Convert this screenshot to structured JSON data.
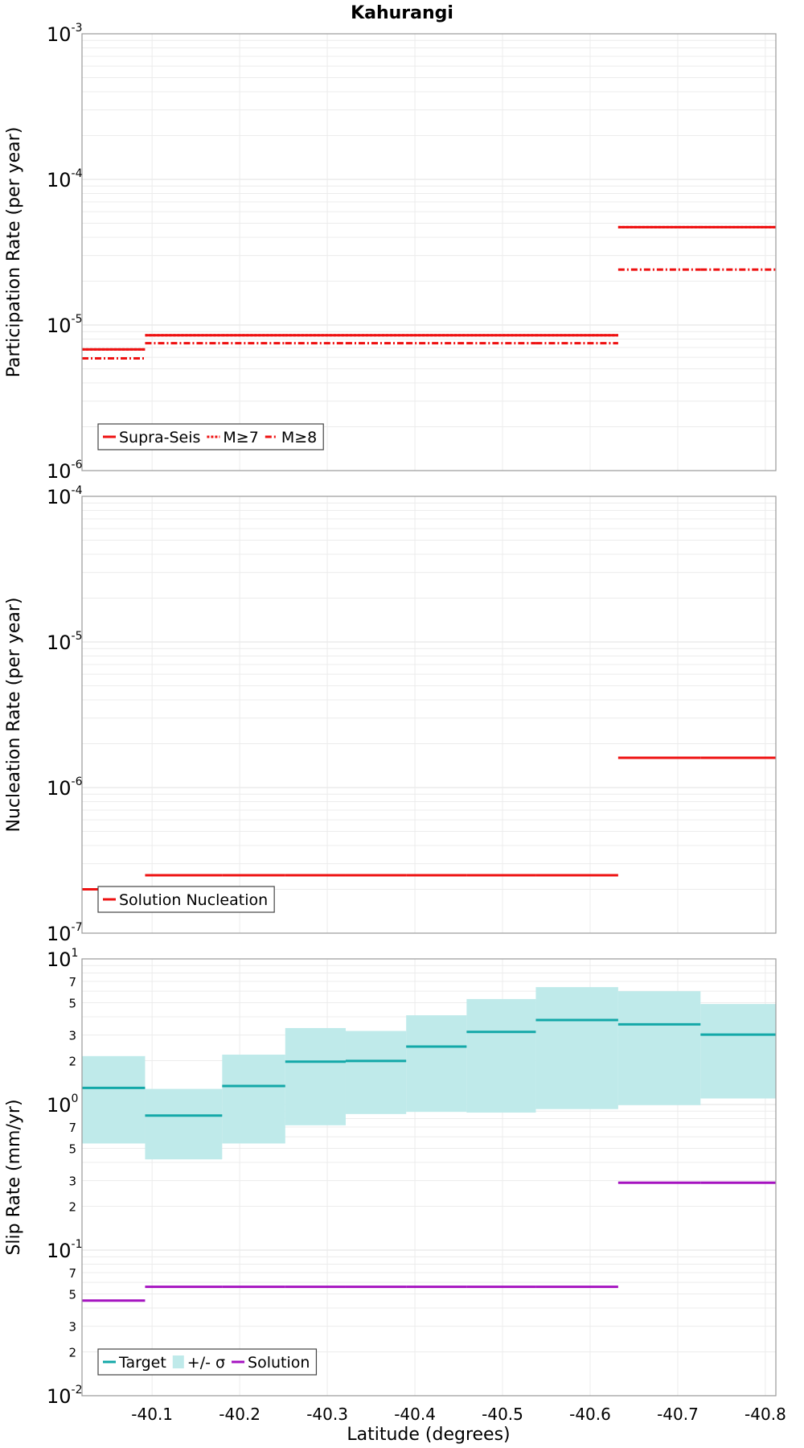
{
  "chart_data": {
    "type": "line",
    "title": "Kahurangi",
    "xlabel": "Latitude (degrees)",
    "x_ticks": [
      "-40.1",
      "-40.2",
      "-40.3",
      "-40.4",
      "-40.5",
      "-40.6",
      "-40.7",
      "-40.8"
    ],
    "x_tick_values": [
      -40.1,
      -40.2,
      -40.3,
      -40.4,
      -40.5,
      -40.6,
      -40.7,
      -40.8
    ],
    "xlim": [
      -40.02,
      -40.812
    ],
    "subsection_boundaries": [
      -40.02,
      -40.092,
      -40.18,
      -40.252,
      -40.321,
      -40.39,
      -40.459,
      -40.538,
      -40.632,
      -40.726,
      -40.812
    ],
    "panels": [
      {
        "ylabel": "Participation Rate (per year)",
        "scale": "log",
        "ylim": [
          1e-06,
          0.001
        ],
        "y_ticks": [
          {
            "base": "10",
            "exp": "-6"
          },
          {
            "base": "10",
            "exp": "-5"
          },
          {
            "base": "10",
            "exp": "-4"
          },
          {
            "base": "10",
            "exp": "-3"
          }
        ],
        "grid": true,
        "legend_position": "bottom-left",
        "series": [
          {
            "name": "Supra-Seis",
            "style": "solid",
            "color": "#ee1111",
            "values": [
              6.8e-06,
              8.5e-06,
              8.5e-06,
              8.5e-06,
              8.5e-06,
              8.5e-06,
              8.5e-06,
              8.5e-06,
              4.7e-05,
              4.7e-05
            ]
          },
          {
            "name": "M≥7",
            "style": "dotted",
            "color": "#ee1111",
            "values": [
              6.8e-06,
              8.5e-06,
              8.5e-06,
              8.5e-06,
              8.5e-06,
              8.5e-06,
              8.5e-06,
              8.5e-06,
              4.7e-05,
              4.7e-05
            ]
          },
          {
            "name": "M≥8",
            "style": "dashdot",
            "color": "#ee1111",
            "values": [
              5.9e-06,
              7.5e-06,
              7.5e-06,
              7.5e-06,
              7.5e-06,
              7.5e-06,
              7.5e-06,
              7.5e-06,
              2.4e-05,
              2.4e-05
            ]
          }
        ]
      },
      {
        "ylabel": "Nucleation Rate (per year)",
        "scale": "log",
        "ylim": [
          1e-07,
          0.0001
        ],
        "y_ticks": [
          {
            "base": "10",
            "exp": "-7"
          },
          {
            "base": "10",
            "exp": "-6"
          },
          {
            "base": "10",
            "exp": "-5"
          },
          {
            "base": "10",
            "exp": "-4"
          }
        ],
        "grid": true,
        "legend_position": "bottom-left",
        "series": [
          {
            "name": "Solution Nucleation",
            "style": "solid",
            "color": "#ee1111",
            "values": [
              2e-07,
              2.5e-07,
              2.5e-07,
              2.5e-07,
              2.5e-07,
              2.5e-07,
              2.5e-07,
              2.5e-07,
              1.6e-06,
              1.6e-06
            ]
          }
        ]
      },
      {
        "ylabel": "Slip Rate (mm/yr)",
        "scale": "log",
        "ylim": [
          0.01,
          10
        ],
        "y_ticks": [
          {
            "base": "10",
            "exp": "-2"
          },
          {
            "base": "10",
            "exp": "-1"
          },
          {
            "base": "10",
            "exp": "0"
          },
          {
            "base": "10",
            "exp": "1"
          }
        ],
        "minor_ticks": [
          {
            "value": 0.02,
            "label": "2"
          },
          {
            "value": 0.03,
            "label": "3"
          },
          {
            "value": 0.05,
            "label": "5"
          },
          {
            "value": 0.07,
            "label": "7"
          },
          {
            "value": 0.2,
            "label": "2"
          },
          {
            "value": 0.3,
            "label": "3"
          },
          {
            "value": 0.5,
            "label": "5"
          },
          {
            "value": 0.7,
            "label": "7"
          },
          {
            "value": 2,
            "label": "2"
          },
          {
            "value": 3,
            "label": "3"
          },
          {
            "value": 5,
            "label": "5"
          },
          {
            "value": 7,
            "label": "7"
          }
        ],
        "grid": true,
        "legend_position": "bottom-left",
        "band": {
          "name": "+/- σ",
          "color": "#bfeaea",
          "low": [
            0.54,
            0.42,
            0.54,
            0.72,
            0.86,
            0.89,
            0.88,
            0.93,
            0.99,
            1.1
          ],
          "high": [
            2.15,
            1.28,
            2.2,
            3.35,
            3.2,
            4.1,
            5.3,
            6.4,
            6.0,
            4.9
          ]
        },
        "series": [
          {
            "name": "Target",
            "style": "solid",
            "color": "#13a8a8",
            "values": [
              1.3,
              0.84,
              1.34,
              1.97,
              1.99,
              2.5,
              3.15,
              3.8,
              3.55,
              3.02
            ]
          },
          {
            "name": "Solution",
            "style": "solid",
            "color": "#a513c0",
            "values": [
              0.045,
              0.056,
              0.056,
              0.056,
              0.056,
              0.056,
              0.056,
              0.056,
              0.29,
              0.29
            ]
          }
        ]
      }
    ]
  }
}
